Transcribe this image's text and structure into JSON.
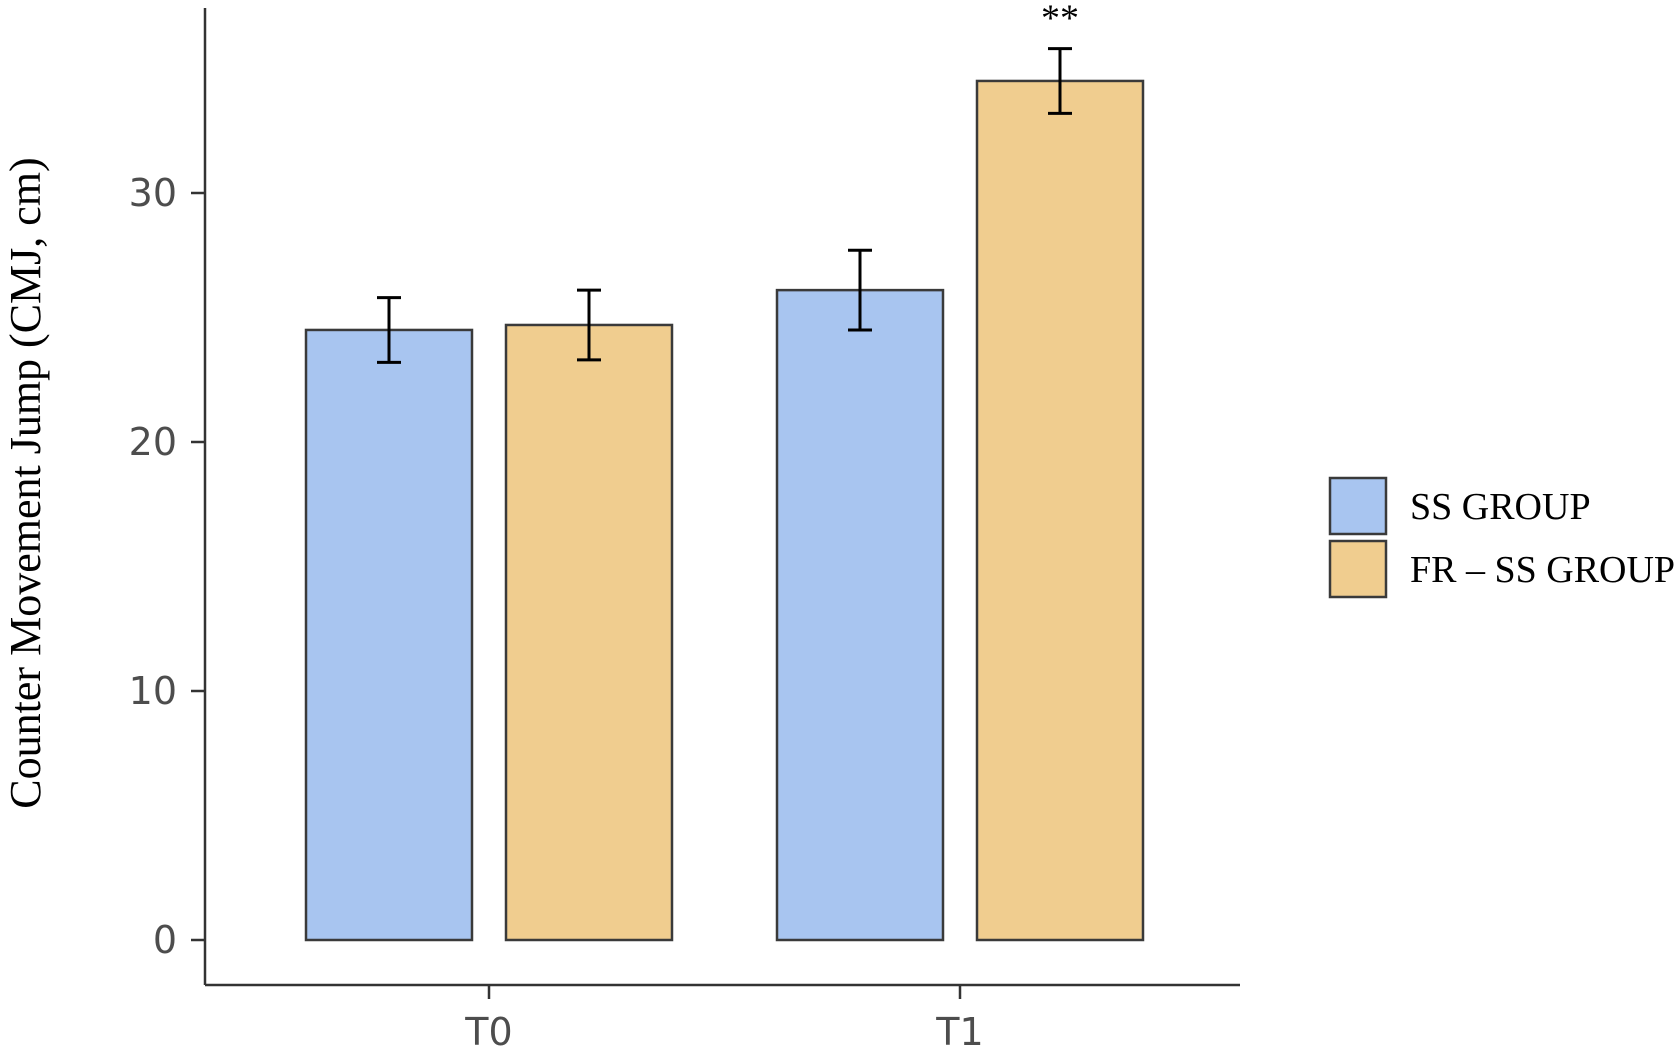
{
  "chart_data": {
    "type": "bar",
    "title": "",
    "xlabel": "",
    "ylabel": "Counter Movement Jump (CMJ, cm)",
    "categories": [
      "T0",
      "T1"
    ],
    "ylim": [
      0,
      37
    ],
    "yticks": [
      0,
      10,
      20,
      30
    ],
    "ytick_labels": [
      "0",
      "10",
      "20",
      "30"
    ],
    "grid": false,
    "legend_position": "right",
    "series": [
      {
        "name": "SS GROUP",
        "color": "#a8c5f0",
        "values": [
          24.5,
          26.1
        ],
        "error": [
          1.3,
          1.6
        ]
      },
      {
        "name": "FR – SS GROUP",
        "color": "#f0cd8f",
        "values": [
          24.7,
          34.5
        ],
        "error": [
          1.4,
          1.3
        ]
      }
    ],
    "annotations": [
      {
        "text": "**",
        "category": "T1",
        "series": "FR – SS GROUP"
      }
    ]
  }
}
